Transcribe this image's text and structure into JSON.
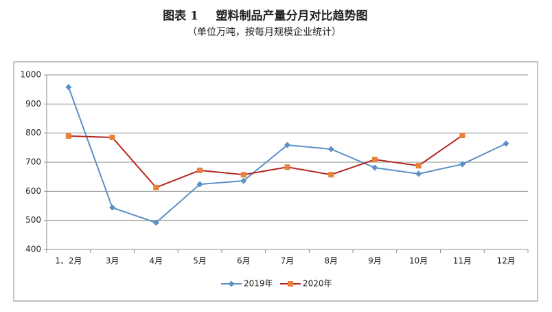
{
  "chart_data": {
    "type": "line",
    "title_label": "图表 1",
    "title": "塑料制品产量分月对比趋势图",
    "subtitle": "（单位万吨，按每月规模企业统计）",
    "categories": [
      "1、2月",
      "3月",
      "4月",
      "5月",
      "6月",
      "7月",
      "8月",
      "9月",
      "10月",
      "11月",
      "12月"
    ],
    "series": [
      {
        "name": "2019年",
        "color": "#5b8fc7",
        "marker": "diamond",
        "marker_color": "#5b8fc7",
        "values": [
          958,
          544,
          492,
          624,
          636,
          759,
          745,
          681,
          660,
          693,
          764
        ]
      },
      {
        "name": "2020年",
        "color": "#b5271f",
        "marker": "square",
        "marker_color": "#e8813a",
        "values": [
          790,
          785,
          613,
          672,
          657,
          683,
          657,
          709,
          688,
          792,
          null
        ]
      }
    ],
    "ylim": [
      400,
      1000
    ],
    "yticks": [
      400,
      500,
      600,
      700,
      800,
      900,
      1000
    ],
    "grid": true,
    "legend": "bottom"
  }
}
